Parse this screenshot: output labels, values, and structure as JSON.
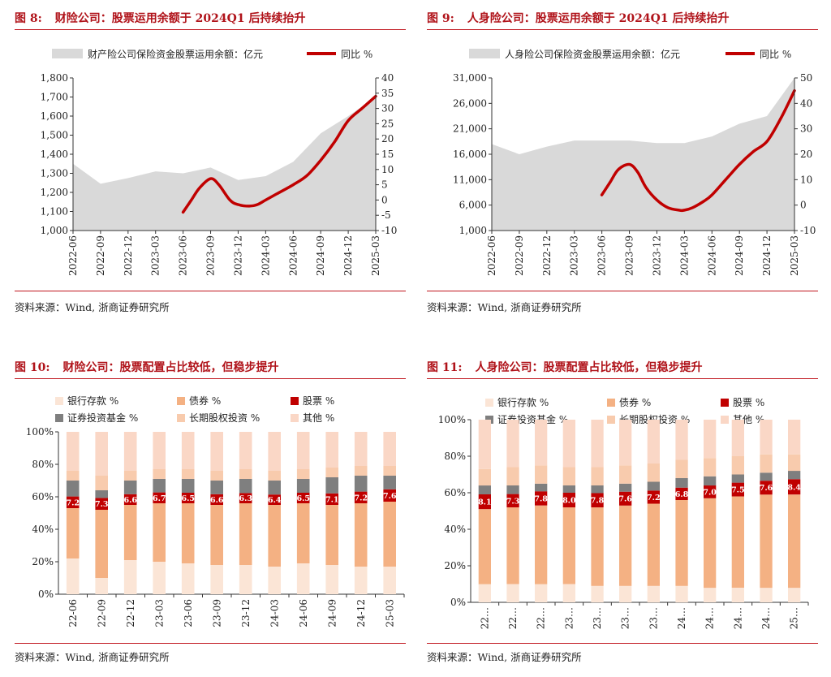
{
  "colors": {
    "title_red": "#b0131a",
    "area_gray": "#d9d9d9",
    "line_red": "#c00000",
    "bank": "#fbe5d6",
    "bond": "#f4b183",
    "stock": "#c00000",
    "fund": "#7f7f7f",
    "equity": "#f8cbad",
    "other": "#fad7c6"
  },
  "panels": [
    {
      "number": "图 8:",
      "title": "财险公司：股票运用余额于 2024Q1 后持续抬升",
      "source": "资料来源：Wind, 浙商证券研究所"
    },
    {
      "number": "图 9:",
      "title": "人身险公司：股票运用余额于 2024Q1 后持续抬升",
      "source": "资料来源：Wind, 浙商证券研究所"
    },
    {
      "number": "图 10:",
      "title": "财险公司：股票配置占比较低，但稳步提升",
      "source": "资料来源：Wind, 浙商证券研究所"
    },
    {
      "number": "图 11:",
      "title": "人身险公司：股票配置占比较低，但稳步提升",
      "source": "资料来源：Wind, 浙商证券研究所"
    }
  ],
  "chart_data": [
    {
      "type": "area",
      "legend": [
        "财产险公司保险资金股票运用余额：亿元",
        "同比 %"
      ],
      "categories": [
        "2022-06",
        "2022-09",
        "2022-12",
        "2023-03",
        "2023-06",
        "2023-09",
        "2023-12",
        "2024-03",
        "2024-06",
        "2024-09",
        "2024-12",
        "2025-03"
      ],
      "area_values": [
        1350,
        1245,
        1275,
        1310,
        1300,
        1330,
        1265,
        1285,
        1360,
        1510,
        1600,
        1700
      ],
      "line_x": [
        4,
        4.3,
        4.6,
        5,
        5.3,
        5.7,
        6,
        6.4,
        6.7,
        7,
        7.4,
        8,
        8.5,
        9,
        9.5,
        10,
        10.5,
        11
      ],
      "line_values": [
        -4,
        0,
        4,
        7,
        5,
        0,
        -1.5,
        -2,
        -1.5,
        0,
        2,
        5,
        8,
        13,
        19,
        26,
        30,
        34
      ],
      "ylim": [
        1000,
        1800
      ],
      "y_ticks": [
        "1,000",
        "1,100",
        "1,200",
        "1,300",
        "1,400",
        "1,500",
        "1,600",
        "1,700",
        "1,800"
      ],
      "y2lim": [
        -10,
        40
      ],
      "y2_ticks": [
        "-10",
        "-5",
        "0",
        "5",
        "10",
        "15",
        "20",
        "25",
        "30",
        "35",
        "40"
      ]
    },
    {
      "type": "area",
      "legend": [
        "人身险公司保险资金股票运用余额：亿元",
        "同比 %"
      ],
      "categories": [
        "2022-06",
        "2022-09",
        "2022-12",
        "2023-03",
        "2023-06",
        "2023-09",
        "2023-12",
        "2024-03",
        "2024-06",
        "2024-09",
        "2024-12",
        "2025-03"
      ],
      "area_values": [
        18000,
        16000,
        17500,
        18700,
        18700,
        18700,
        18200,
        18200,
        19500,
        22000,
        23500,
        31000
      ],
      "line_x": [
        4,
        4.3,
        4.6,
        5,
        5.3,
        5.6,
        6,
        6.4,
        6.8,
        7,
        7.3,
        7.7,
        8,
        8.5,
        9,
        9.5,
        10,
        10.5,
        11
      ],
      "line_values": [
        4,
        9,
        14,
        16,
        13,
        7,
        2,
        -1,
        -2,
        -2,
        -1,
        1.5,
        4,
        10,
        16,
        21,
        25,
        34,
        45
      ],
      "ylim": [
        1000,
        31000
      ],
      "y_ticks": [
        "1,000",
        "6,000",
        "11,000",
        "16,000",
        "21,000",
        "26,000",
        "31,000"
      ],
      "y2lim": [
        -10,
        50
      ],
      "y2_ticks": [
        "-10",
        "0",
        "10",
        "20",
        "30",
        "40",
        "50"
      ]
    },
    {
      "type": "bar",
      "stacked": true,
      "legend": [
        "银行存款 %",
        "债券 %",
        "股票 %",
        "证券投资基金 %",
        "长期股权投资 %",
        "其他 %"
      ],
      "categories": [
        "22-06",
        "22-09",
        "22-12",
        "23-03",
        "23-06",
        "23-09",
        "23-12",
        "24-03",
        "24-06",
        "24-09",
        "24-12",
        "25-03"
      ],
      "series": [
        {
          "name": "银行存款 %",
          "values": [
            22,
            10,
            21,
            20,
            19,
            18,
            18,
            17,
            19,
            18,
            17,
            17
          ]
        },
        {
          "name": "债券 %",
          "values": [
            31,
            42,
            34,
            36,
            37,
            37,
            38,
            38,
            37,
            37,
            39,
            40
          ]
        },
        {
          "name": "股票 %",
          "values": [
            7.2,
            7.3,
            6.6,
            6.7,
            6.5,
            6.6,
            6.3,
            6.4,
            6.5,
            7.1,
            7.2,
            7.6
          ]
        },
        {
          "name": "证券投资基金 %",
          "values": [
            9.8,
            4.7,
            8.4,
            8.3,
            8.5,
            8.4,
            8.7,
            8.6,
            8.5,
            9.9,
            9.8,
            8.4
          ]
        },
        {
          "name": "长期股权投资 %",
          "values": [
            6,
            9,
            6,
            6,
            6,
            6,
            6,
            6,
            6,
            6,
            6,
            6
          ]
        },
        {
          "name": "其他 %",
          "values": [
            24,
            27,
            24,
            23,
            23,
            24,
            23,
            24,
            23,
            22,
            21,
            21
          ]
        }
      ],
      "labels": [
        "7.2",
        "7.3",
        "6.6",
        "6.7",
        "6.5",
        "6.6",
        "6.3",
        "6.4",
        "6.5",
        "7.1",
        "7.2",
        "7.6"
      ],
      "y_ticks": [
        "0%",
        "20%",
        "40%",
        "60%",
        "80%",
        "100%"
      ],
      "ylim": [
        0,
        100
      ]
    },
    {
      "type": "bar",
      "stacked": true,
      "legend": [
        "银行存款 %",
        "债券 %",
        "股票 %",
        "证券投资基金 %",
        "长期股权投资 %",
        "其他 %"
      ],
      "categories": [
        "22…",
        "22…",
        "22…",
        "23…",
        "23…",
        "23…",
        "23…",
        "24…",
        "24…",
        "24…",
        "24…",
        "25…"
      ],
      "series": [
        {
          "name": "银行存款 %",
          "values": [
            10,
            10,
            10,
            10,
            9,
            9,
            9,
            9,
            8,
            8,
            8,
            8
          ]
        },
        {
          "name": "债券 %",
          "values": [
            41,
            42,
            43,
            42,
            43,
            44,
            45,
            47,
            49,
            50,
            51,
            51
          ]
        },
        {
          "name": "股票 %",
          "values": [
            8.1,
            7.3,
            7.8,
            8.0,
            7.8,
            7.6,
            7.2,
            6.8,
            7.0,
            7.5,
            7.6,
            8.4
          ]
        },
        {
          "name": "证券投资基金 %",
          "values": [
            4.9,
            4.7,
            4.2,
            4.0,
            4.2,
            4.4,
            4.8,
            5.2,
            5.0,
            4.5,
            4.4,
            4.6
          ]
        },
        {
          "name": "长期股权投资 %",
          "values": [
            9,
            10,
            10,
            10,
            10,
            10,
            10,
            10,
            10,
            10,
            10,
            9
          ]
        },
        {
          "name": "其他 %",
          "values": [
            27,
            26,
            25,
            26,
            26,
            25,
            24,
            22,
            21,
            20,
            19,
            19
          ]
        }
      ],
      "labels": [
        "8.1",
        "7.3",
        "7.8",
        "8.0",
        "7.8",
        "7.6",
        "7.2",
        "6.8",
        "7.0",
        "7.5",
        "7.6",
        "8.4"
      ],
      "y_ticks": [
        "0%",
        "20%",
        "40%",
        "60%",
        "80%",
        "100%"
      ],
      "ylim": [
        0,
        100
      ]
    }
  ]
}
